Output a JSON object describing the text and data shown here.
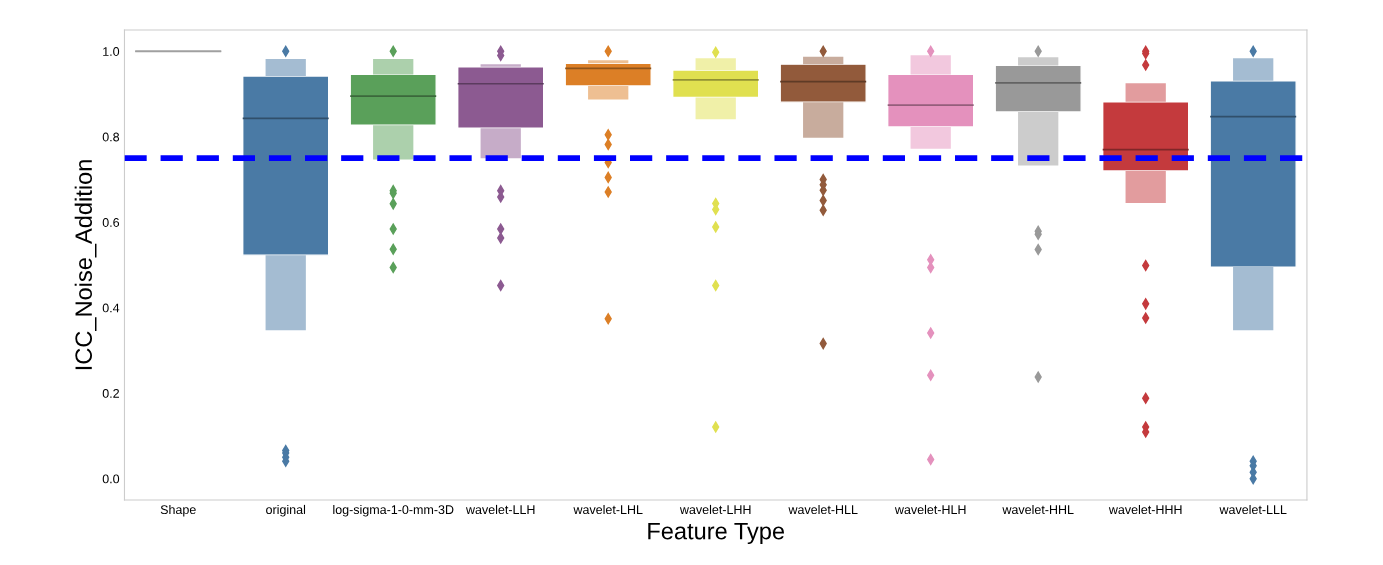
{
  "chart_data": {
    "type": "box",
    "xlabel": "Feature Type",
    "ylabel": "ICC_Noise_Addition",
    "categories": [
      "Shape",
      "original",
      "log-sigma-1-0-mm-3D",
      "wavelet-LLH",
      "wavelet-LHL",
      "wavelet-LHH",
      "wavelet-HLL",
      "wavelet-HLH",
      "wavelet-HHL",
      "wavelet-HHH",
      "wavelet-LLL"
    ],
    "colors": [
      "#a0a0a0",
      "#4a7aa5",
      "#5aa05a",
      "#8c5a91",
      "#dc7f26",
      "#e0e050",
      "#925a3b",
      "#e491bd",
      "#999999",
      "#c43a3d",
      "#4a7aa5"
    ],
    "boxes": [
      {
        "low": 1.0,
        "q1": 1.0,
        "median": 1.0,
        "q3": 1.0,
        "high": 1.0
      },
      {
        "low": 0.347,
        "q1": 0.523,
        "median": 0.843,
        "q3": 0.942,
        "high": 0.982,
        "outliers": [
          1.0,
          0.066,
          0.06,
          0.05,
          0.041
        ]
      },
      {
        "low": 0.747,
        "q1": 0.827,
        "median": 0.895,
        "q3": 0.946,
        "high": 0.982,
        "outliers": [
          1.0,
          0.674,
          0.668,
          0.643,
          0.584,
          0.537,
          0.494
        ]
      },
      {
        "low": 0.75,
        "q1": 0.82,
        "median": 0.924,
        "q3": 0.964,
        "high": 0.97,
        "outliers": [
          1.0,
          0.99,
          0.674,
          0.659,
          0.584,
          0.563,
          0.452
        ]
      },
      {
        "low": 0.887,
        "q1": 0.919,
        "median": 0.96,
        "q3": 0.972,
        "high": 0.979,
        "outliers": [
          1.0,
          0.805,
          0.782,
          0.74,
          0.705,
          0.671,
          0.374
        ]
      },
      {
        "low": 0.841,
        "q1": 0.892,
        "median": 0.933,
        "q3": 0.956,
        "high": 0.984,
        "outliers": [
          0.998,
          0.644,
          0.63,
          0.589,
          0.452,
          0.121
        ]
      },
      {
        "low": 0.798,
        "q1": 0.881,
        "median": 0.929,
        "q3": 0.97,
        "high": 0.987,
        "outliers": [
          1.0,
          0.7,
          0.688,
          0.675,
          0.651,
          0.628,
          0.316
        ]
      },
      {
        "low": 0.772,
        "q1": 0.823,
        "median": 0.874,
        "q3": 0.946,
        "high": 0.991,
        "outliers": [
          1.0,
          0.512,
          0.494,
          0.341,
          0.242,
          0.045
        ]
      },
      {
        "low": 0.733,
        "q1": 0.858,
        "median": 0.926,
        "q3": 0.967,
        "high": 0.986,
        "outliers": [
          1.0,
          0.579,
          0.572,
          0.536,
          0.238
        ]
      },
      {
        "low": 0.645,
        "q1": 0.72,
        "median": 0.77,
        "q3": 0.882,
        "high": 0.925,
        "outliers": [
          1.0,
          0.995,
          0.968,
          0.499,
          0.409,
          0.376,
          0.188,
          0.121,
          0.109
        ]
      },
      {
        "low": 0.347,
        "q1": 0.495,
        "median": 0.847,
        "q3": 0.931,
        "high": 0.984,
        "outliers": [
          1.0,
          0.041,
          0.03,
          0.015,
          0.0
        ]
      }
    ],
    "ylim": [
      -0.05,
      1.05
    ],
    "yticks": [
      {
        "value": 0,
        "label": "0.0"
      },
      0.2,
      0.4,
      0.6,
      0.8,
      {
        "value": 1,
        "label": "1.0"
      }
    ],
    "ref_lines": [
      {
        "axis": "y",
        "value": 0.75,
        "color": "#0000ff",
        "line_style": "dashed"
      }
    ],
    "grid": false,
    "marker": "diamond"
  }
}
